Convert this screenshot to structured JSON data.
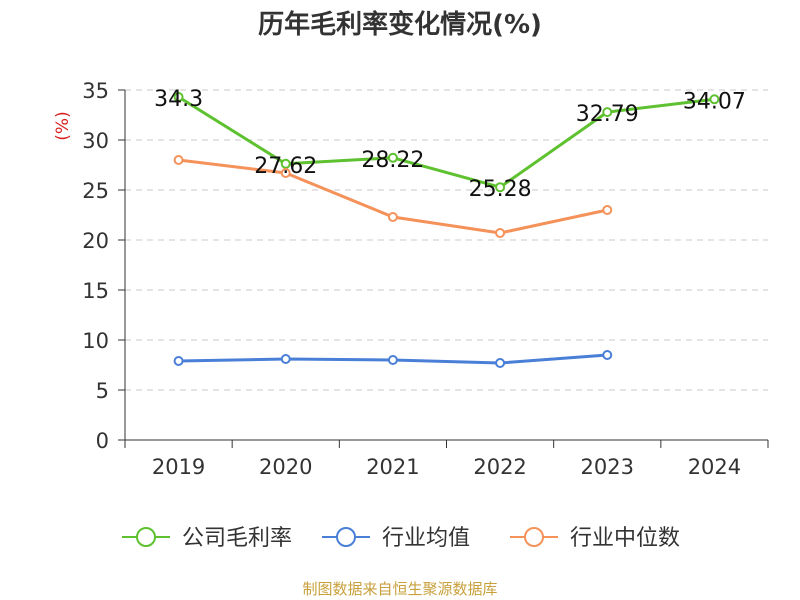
{
  "chart_data": {
    "type": "line",
    "title": "历年毛利率变化情况(%)",
    "ylabel": "(%)",
    "xlabel": "",
    "categories": [
      "2019",
      "2020",
      "2021",
      "2022",
      "2023",
      "2024"
    ],
    "ylim": [
      0,
      35
    ],
    "yticks": [
      0,
      5,
      10,
      15,
      20,
      25,
      30,
      35
    ],
    "grid": true,
    "legend_position": "bottom",
    "series": [
      {
        "name": "公司毛利率",
        "color": "#5ec12f",
        "values": [
          34.3,
          27.62,
          28.22,
          25.28,
          32.79,
          34.07
        ],
        "labels": [
          "34.3",
          "27.62",
          "28.22",
          "25.28",
          "32.79",
          "34.07"
        ]
      },
      {
        "name": "行业均值",
        "color": "#4a7fd8",
        "values": [
          7.9,
          8.1,
          8.0,
          7.7,
          8.5,
          null
        ]
      },
      {
        "name": "行业中位数",
        "color": "#f4925a",
        "values": [
          28.0,
          26.7,
          22.3,
          20.7,
          23.0,
          null
        ]
      }
    ]
  },
  "footer": {
    "source": "制图数据来自恒生聚源数据库"
  }
}
